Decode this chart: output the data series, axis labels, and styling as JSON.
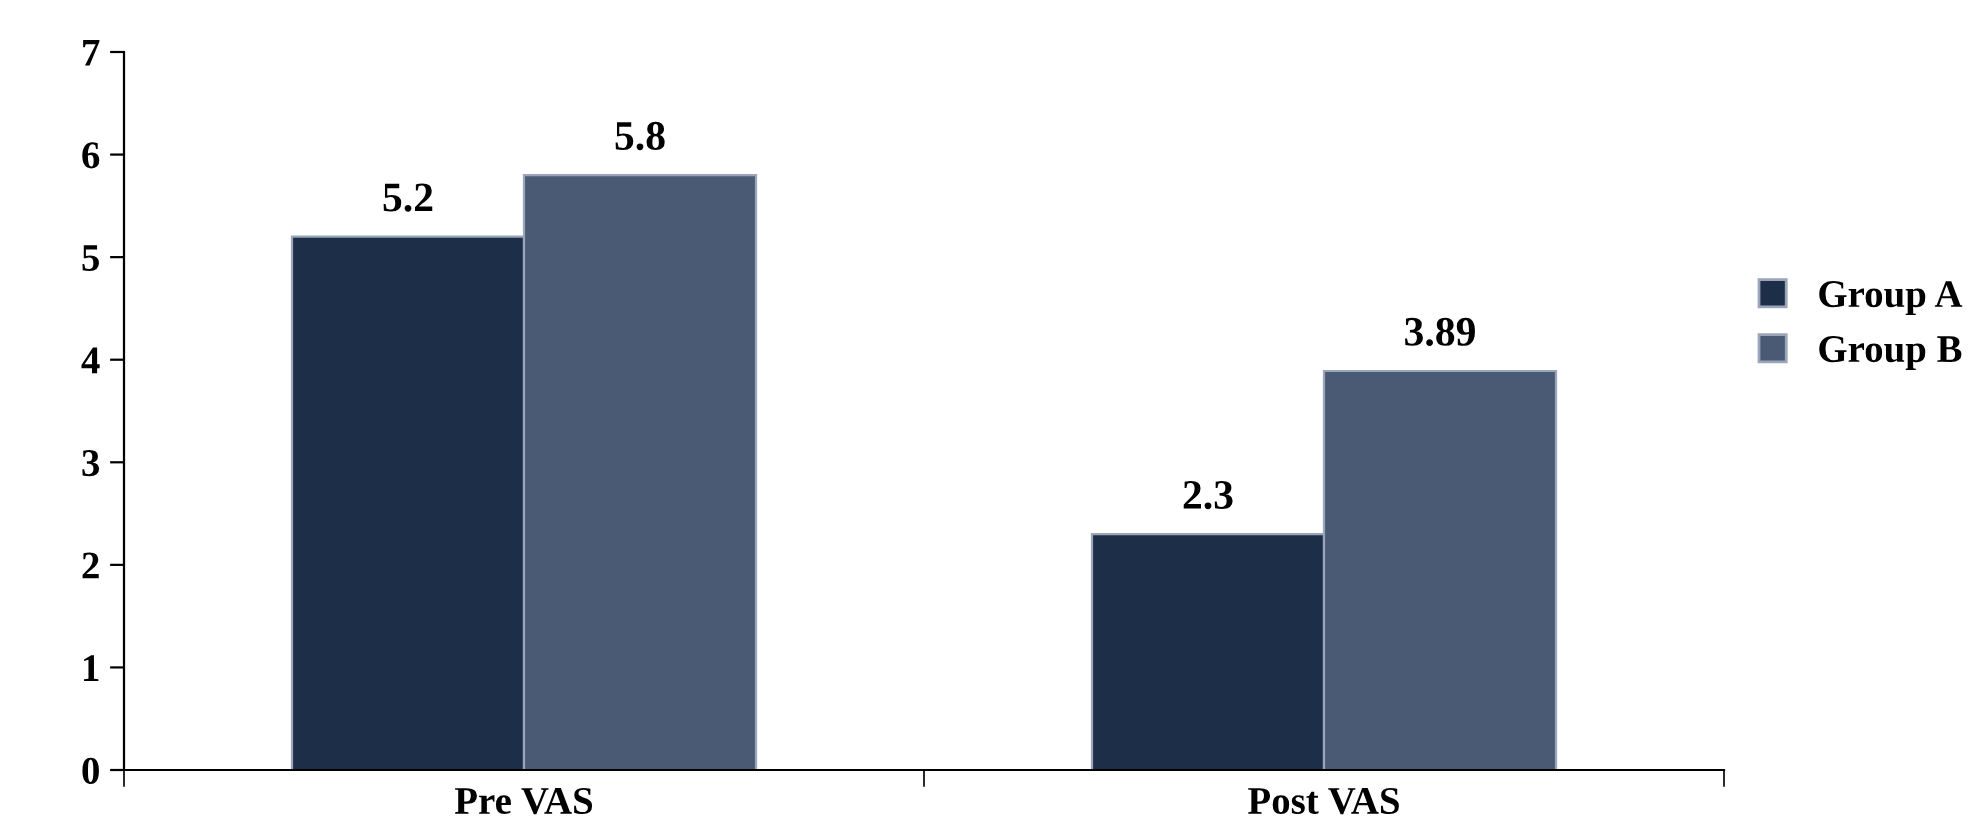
{
  "chart_data": {
    "type": "bar",
    "categories": [
      "Pre VAS",
      "Post VAS"
    ],
    "series": [
      {
        "name": "Group A",
        "color": "#1d2e48",
        "values": [
          5.2,
          2.3
        ]
      },
      {
        "name": "Group B",
        "color": "#4b5a74",
        "values": [
          5.8,
          3.89
        ]
      }
    ],
    "ylim": [
      0,
      7
    ],
    "yticks": [
      0,
      1,
      2,
      3,
      4,
      5,
      6,
      7
    ],
    "grid": false,
    "legend": "right",
    "data_labels": true
  }
}
